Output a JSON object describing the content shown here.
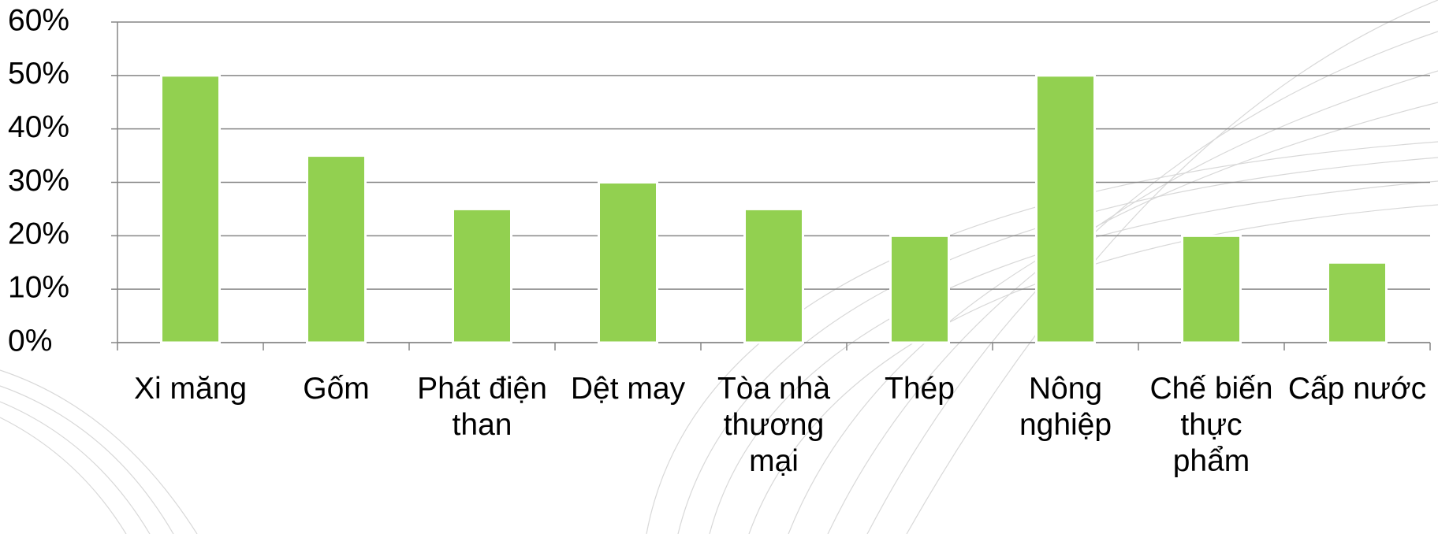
{
  "chart_data": {
    "type": "bar",
    "categories": [
      "Xi măng",
      "Gốm",
      "Phát điện than",
      "Dệt may",
      "Tòa nhà thương mại",
      "Thép",
      "Nông nghiệp",
      "Chế biến thực phẩm",
      "Cấp nước"
    ],
    "values": [
      50,
      35,
      25,
      30,
      25,
      20,
      50,
      20,
      15
    ],
    "color": "#92d050",
    "ylim": [
      0,
      60
    ],
    "yticks": [
      {
        "value": 0,
        "label": "0%"
      },
      {
        "value": 10,
        "label": "10%"
      },
      {
        "value": 20,
        "label": "20%"
      },
      {
        "value": 30,
        "label": "30%"
      },
      {
        "value": 40,
        "label": "40%"
      },
      {
        "value": 50,
        "label": "50%"
      },
      {
        "value": 60,
        "label": "60%"
      }
    ],
    "grid": true
  }
}
